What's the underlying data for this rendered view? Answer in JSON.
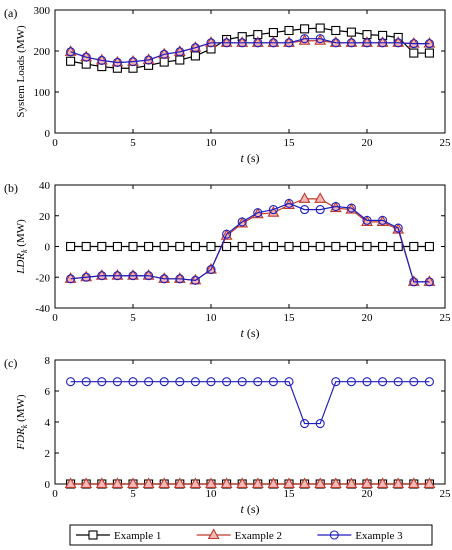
{
  "chart_data": [
    {
      "type": "line",
      "panel_label": "(a)",
      "xlabel": "t (s)",
      "ylabel": "System Loads (MW)",
      "xlim": [
        0,
        25
      ],
      "ylim": [
        0,
        300
      ],
      "xticks": [
        0,
        5,
        10,
        15,
        20,
        25
      ],
      "yticks": [
        0,
        100,
        200,
        300
      ],
      "x": [
        1,
        2,
        3,
        4,
        5,
        6,
        7,
        8,
        9,
        10,
        11,
        12,
        13,
        14,
        15,
        16,
        17,
        18,
        19,
        20,
        21,
        22,
        23,
        24
      ],
      "series": [
        {
          "name": "Example 1",
          "values": [
            175,
            168,
            162,
            158,
            158,
            165,
            173,
            178,
            188,
            205,
            228,
            235,
            240,
            245,
            250,
            254,
            256,
            250,
            246,
            240,
            238,
            233,
            195,
            195
          ]
        },
        {
          "name": "Example 2",
          "values": [
            198,
            185,
            177,
            172,
            174,
            178,
            192,
            198,
            208,
            220,
            220,
            220,
            220,
            220,
            220,
            225,
            225,
            220,
            220,
            220,
            220,
            220,
            218,
            218
          ]
        },
        {
          "name": "Example 3",
          "values": [
            198,
            185,
            177,
            172,
            174,
            178,
            192,
            198,
            208,
            220,
            220,
            220,
            220,
            220,
            220,
            230,
            230,
            220,
            220,
            220,
            220,
            220,
            218,
            218
          ]
        }
      ]
    },
    {
      "type": "line",
      "panel_label": "(b)",
      "xlabel": "t (s)",
      "ylabel": "LDR_k (MW)",
      "xlim": [
        0,
        25
      ],
      "ylim": [
        -40,
        40
      ],
      "xticks": [
        0,
        5,
        10,
        15,
        20,
        25
      ],
      "yticks": [
        -40,
        -20,
        0,
        20,
        40
      ],
      "x": [
        1,
        2,
        3,
        4,
        5,
        6,
        7,
        8,
        9,
        10,
        11,
        12,
        13,
        14,
        15,
        16,
        17,
        18,
        19,
        20,
        21,
        22,
        23,
        24
      ],
      "series": [
        {
          "name": "Example 1",
          "values": [
            0,
            0,
            0,
            0,
            0,
            0,
            0,
            0,
            0,
            0,
            0,
            0,
            0,
            0,
            0,
            0,
            0,
            0,
            0,
            0,
            0,
            0,
            0,
            0
          ]
        },
        {
          "name": "Example 2",
          "values": [
            -21,
            -20,
            -19,
            -19,
            -19,
            -19,
            -21,
            -21,
            -22,
            -15,
            7,
            15,
            21,
            22,
            27,
            31,
            31,
            25,
            24,
            16,
            16,
            11,
            -23,
            -23
          ]
        },
        {
          "name": "Example 3",
          "values": [
            -21,
            -20,
            -19,
            -19,
            -19,
            -19,
            -21,
            -21,
            -22,
            -15,
            8,
            16,
            22,
            24,
            28,
            24,
            24,
            26,
            25,
            17,
            17,
            12,
            -23,
            -23
          ]
        }
      ]
    },
    {
      "type": "line",
      "panel_label": "(c)",
      "xlabel": "t (s)",
      "ylabel": "FDR_k (MW)",
      "xlim": [
        0,
        25
      ],
      "ylim": [
        0,
        8
      ],
      "xticks": [
        0,
        5,
        10,
        15,
        20,
        25
      ],
      "yticks": [
        0,
        2,
        4,
        6,
        8
      ],
      "x": [
        1,
        2,
        3,
        4,
        5,
        6,
        7,
        8,
        9,
        10,
        11,
        12,
        13,
        14,
        15,
        16,
        17,
        18,
        19,
        20,
        21,
        22,
        23,
        24
      ],
      "series": [
        {
          "name": "Example 1",
          "values": [
            0,
            0,
            0,
            0,
            0,
            0,
            0,
            0,
            0,
            0,
            0,
            0,
            0,
            0,
            0,
            0,
            0,
            0,
            0,
            0,
            0,
            0,
            0,
            0
          ]
        },
        {
          "name": "Example 2",
          "values": [
            0,
            0,
            0,
            0,
            0,
            0,
            0,
            0,
            0,
            0,
            0,
            0,
            0,
            0,
            0,
            0,
            0,
            0,
            0,
            0,
            0,
            0,
            0,
            0
          ]
        },
        {
          "name": "Example 3",
          "values": [
            6.6,
            6.6,
            6.6,
            6.6,
            6.6,
            6.6,
            6.6,
            6.6,
            6.6,
            6.6,
            6.6,
            6.6,
            6.6,
            6.6,
            6.6,
            3.9,
            3.9,
            6.6,
            6.6,
            6.6,
            6.6,
            6.6,
            6.6,
            6.6
          ]
        }
      ]
    }
  ],
  "legend": {
    "placement": "bottom",
    "entries": [
      {
        "name": "Example 1",
        "color": "#000000",
        "marker": "square"
      },
      {
        "name": "Example 2",
        "color": "#c0392b",
        "marker": "triangle"
      },
      {
        "name": "Example 3",
        "color": "#1f1fbf",
        "marker": "circle"
      }
    ]
  },
  "colors": {
    "example1": "#000000",
    "example2_line": "#c0392b",
    "example2_fill": "#f4b8b8",
    "example3": "#1f1fbf"
  }
}
